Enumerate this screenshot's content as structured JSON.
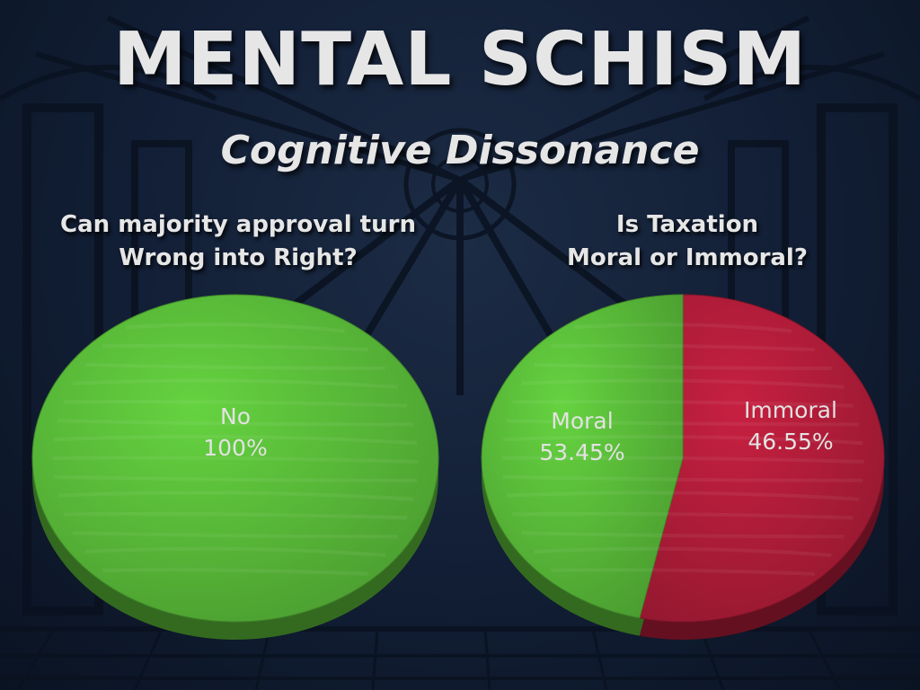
{
  "slide": {
    "title": "MENTAL SCHISM",
    "subtitle": "Cognitive Dissonance"
  },
  "colors": {
    "background": "#132038",
    "title_text": "#e6e6e6",
    "green": "#5cc03a",
    "red": "#b51d3a"
  },
  "chart_data": [
    {
      "type": "pie",
      "title_lines": [
        "Can majority approval turn",
        "Wrong into Right?"
      ],
      "slices": [
        {
          "label": "No",
          "value_text": "100%",
          "value": 100,
          "color": "#5cc03a"
        }
      ]
    },
    {
      "type": "pie",
      "title_lines": [
        "Is Taxation",
        "Moral or Immoral?"
      ],
      "slices": [
        {
          "label": "Moral",
          "value_text": "53.45%",
          "value": 53.45,
          "color": "#b51d3a"
        },
        {
          "label": "Immoral",
          "value_text": "46.55%",
          "value": 46.55,
          "color": "#5cc03a"
        }
      ]
    }
  ]
}
